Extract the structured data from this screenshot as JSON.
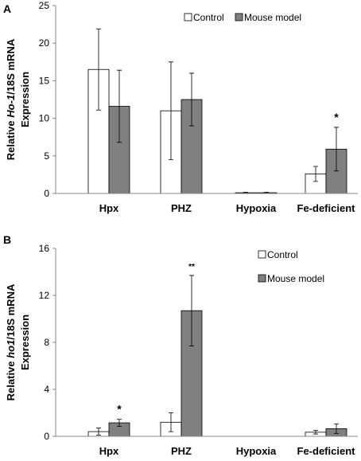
{
  "chart_data": [
    {
      "type": "bar",
      "panel_label": "A",
      "ylabel_line1": [
        "Relative ",
        "Ho-1",
        "/18S mRNA"
      ],
      "ylabel_line2": "Expression",
      "categories": [
        "Hpx",
        "PHZ",
        "Hypoxia",
        "Fe-deficient"
      ],
      "series": [
        {
          "name": "Control",
          "color": "#ffffff",
          "values": [
            16.5,
            11.0,
            0.1,
            2.6
          ],
          "errors": [
            5.4,
            6.5,
            0.05,
            1.0
          ]
        },
        {
          "name": "Mouse model",
          "color": "#808080",
          "values": [
            11.6,
            12.5,
            0.1,
            5.9
          ],
          "errors": [
            4.8,
            3.5,
            0.05,
            2.9
          ]
        }
      ],
      "annotations": [
        {
          "text": "*",
          "category": 3,
          "series": 1
        }
      ],
      "ylim": [
        0,
        25
      ],
      "yticks": [
        0,
        5,
        10,
        15,
        20,
        25
      ],
      "legend": "top-right"
    },
    {
      "type": "bar",
      "panel_label": "B",
      "ylabel_line1": [
        "Relative ",
        "ho1",
        "/18S mRNA"
      ],
      "ylabel_line2": "Expression",
      "categories": [
        "Hpx",
        "PHZ",
        "Hypoxia",
        "Fe-deficient"
      ],
      "series": [
        {
          "name": "Control",
          "color": "#ffffff",
          "values": [
            0.4,
            1.2,
            0,
            0.35
          ],
          "errors": [
            0.3,
            0.8,
            0,
            0.15
          ]
        },
        {
          "name": "Mouse model",
          "color": "#808080",
          "values": [
            1.15,
            10.7,
            0,
            0.65
          ],
          "errors": [
            0.3,
            3.0,
            0,
            0.4
          ]
        }
      ],
      "annotations": [
        {
          "text": "*",
          "category": 0,
          "series": 1
        },
        {
          "text": "**",
          "category": 1,
          "series": 1
        }
      ],
      "ylim": [
        0,
        16
      ],
      "yticks": [
        0,
        4,
        8,
        12,
        16
      ],
      "legend": "top-right"
    }
  ]
}
